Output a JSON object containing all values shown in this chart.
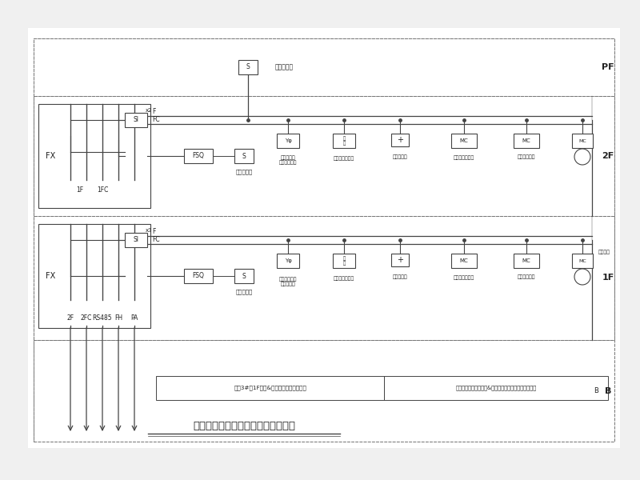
{
  "title": "火灾自动报警及消防联动控制系统图",
  "bg_color": "#f0f0f0",
  "diagram_bg": "#ffffff",
  "line_color": "#444444",
  "box_color": "#222222",
  "dash_color": "#777777",
  "note1": "引自3#楼1F消防&安防中心火灾报警设备",
  "note2": "公共广播主机位于消防&安防中心，或甲方根据需要调整",
  "pf_smoke_label": "感烟探测器",
  "smoke_label": "感烟探测器",
  "manual_alarm_label_2F": "手动报警按\n钮带电话插孔",
  "manual_alarm_label_1F": "手动报警按钮\n带电话插孔",
  "sounder_label": "火灾声光报警器",
  "hydrant_label": "消火栓按钮",
  "cut_power_label": "切断非消防电源",
  "emergency_label": "接通应急照明",
  "elec_shaft": "位于电井"
}
